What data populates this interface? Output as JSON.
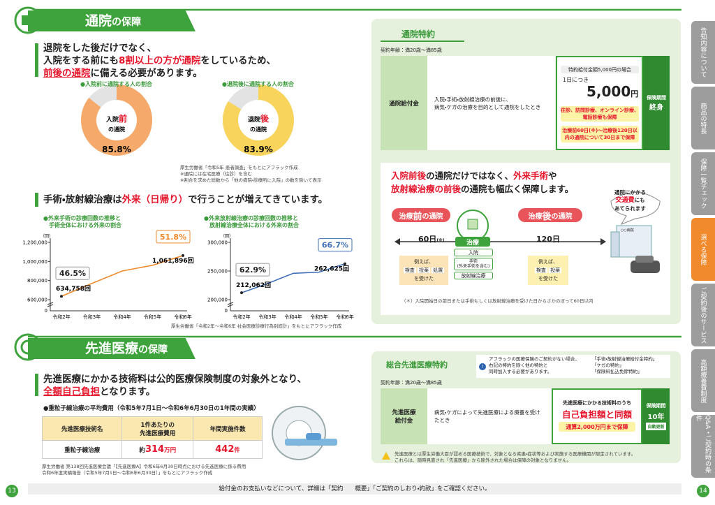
{
  "left_page": {
    "page_number": "13",
    "section1": {
      "title_main": "通院",
      "title_suffix": "の保障",
      "lead": [
        [
          "退院をした後だけでなく、"
        ],
        [
          "入院をする前にも",
          "8割以上の方が通院",
          "をしているため、"
        ],
        [
          "前後の通院",
          "に備える必要があります。"
        ]
      ],
      "donuts": [
        {
          "caption": "●入院前に通院する人の割合",
          "label_a": "入院",
          "label_b": "前",
          "label_c": "の通院",
          "value": 85.8,
          "value_label": "85.8%",
          "color": "#f5a96b",
          "rest_color": "#e3e3e3"
        },
        {
          "caption": "●退院後に通院する人の割合",
          "label_a": "退院",
          "label_b": "後",
          "label_c": "の通院",
          "value": 83.9,
          "value_label": "83.9%",
          "color": "#f9d45c",
          "rest_color": "#e3e3e3"
        }
      ],
      "donut_notes": [
        "厚生労働省「令和5年 患者調査」をもとにアフラック作成",
        "※通院には在宅医療（往診）を含む",
        "※割合を求めた総数から「他の病院・診療所に入院」の数を除いて表示"
      ],
      "subheading": [
        "手術・放射線治療は",
        "外来（日帰り）",
        "で行うことが増えてきています。"
      ],
      "line_charts": [
        {
          "type": "line",
          "title_lines": [
            "●外来手術の診療回数の推移と",
            "手術全体における外来の割合"
          ],
          "unit": "（回）",
          "categories": [
            "令和2年",
            "令和3年",
            "令和4年",
            "令和5年",
            "令和6年"
          ],
          "values": [
            634758,
            770000,
            900000,
            960000,
            1061896
          ],
          "value_labels": [
            "634,758回",
            null,
            null,
            null,
            "1,061,896回"
          ],
          "share_labels": [
            "46.5%",
            "51.8%"
          ],
          "color": "#f08a2c",
          "ylim": [
            600000,
            1200000
          ],
          "yticks": [
            {
              "value": 600000,
              "label": "600,000"
            },
            {
              "value": 800000,
              "label": "800,000"
            },
            {
              "value": 1000000,
              "label": "1,000,000"
            },
            {
              "value": 1200000,
              "label": "1,200,000"
            }
          ],
          "axis_zero": 0
        },
        {
          "type": "line",
          "title_lines": [
            "●外来放射線治療の診療回数の推移と",
            "放射線治療全体における外来の割合"
          ],
          "unit": "（回）",
          "categories": [
            "令和2年",
            "令和3年",
            "令和4年",
            "令和5年",
            "令和6年"
          ],
          "values": [
            212062,
            228000,
            246000,
            248000,
            262625
          ],
          "value_labels": [
            "212,062回",
            null,
            null,
            null,
            "262,625回"
          ],
          "share_labels": [
            "62.9%",
            "66.7%"
          ],
          "color": "#3f6fb6",
          "ylim": [
            200000,
            300000
          ],
          "yticks": [
            {
              "value": 200000,
              "label": "200,000"
            },
            {
              "value": 250000,
              "label": "250,000"
            },
            {
              "value": 300000,
              "label": "300,000"
            }
          ],
          "axis_zero": 0
        }
      ],
      "chart_note": "厚生労働省「令和2年～令和6年 社会医療診療行為別統計」をもとにアフラック作成"
    },
    "section2": {
      "title_main": "先進医療",
      "title_suffix": "の保障",
      "lead": [
        [
          "先進医療にかかる技術料は公的医療保険制度の対象外となり、"
        ],
        [
          "全額自己負担",
          "となります。"
        ]
      ],
      "table_title": "●重粒子線治療の平均費用（令和5年7月1日～令和6年6月30日の1年間の実績）",
      "table": {
        "header": [
          "先進医療技術名",
          "1件あたりの\n先進医療費用",
          "年間実施件数"
        ],
        "row": [
          "重粒子線治療",
          "約",
          "314",
          "万円",
          "442",
          "件"
        ]
      },
      "notes": [
        "厚生労働省 第138回先進医療会議「【先進医療A】令和6年6月30日時点における先進医療に係る費用",
        "令和6年度実績報告（令和5年7月1日～令和6年6月30日）」をもとにアフラック作成"
      ]
    }
  },
  "right_page": {
    "page_number": "14",
    "rider1": {
      "title": "通院特約",
      "age": "契約年齢：満20歳～満85歳",
      "benefit_name": "通院給付金",
      "condition": [
        "入院・手術・放射線治療の前後に、",
        "病気・ケガの治療を目的として通院をしたとき"
      ],
      "amount_case": "特約給付金額5,000円の場合",
      "per_day": "1日につき",
      "amount": "5,000",
      "amount_unit": "円",
      "coverage_1": "往診、訪問診療、オンライン診療、電話診療も保障",
      "coverage_2": "治療前60日(※)～治療後120日以内の通院について30日まで保障",
      "term_label": "保険期間",
      "term": "終身"
    },
    "feature": {
      "headline_1": [
        "入院前後",
        "の通院だけではなく、",
        "外来手術",
        "や"
      ],
      "headline_2": [
        "放射線治療の前後",
        "の通院も幅広く保障します。"
      ],
      "before_label": [
        "治療",
        "前",
        "の通院"
      ],
      "after_label": [
        "治療",
        "後",
        "の通院"
      ],
      "before_days": "60日",
      "before_mark": "(※)",
      "after_days": "120日",
      "treatment": "治療",
      "treatment_items": [
        "入院",
        "手術\n(外来手術を含む)",
        "放射線治療"
      ],
      "example_before": [
        "例えば、",
        "検査",
        "投薬",
        "処置",
        "を受けた"
      ],
      "example_after": [
        "例えば、",
        "検査",
        "投薬",
        "を受けた"
      ],
      "callout": [
        "通院にかかる",
        "交通費",
        "にも",
        "あてられます"
      ],
      "hospital_sign": "○○病院",
      "footnote": "（＊）入院開始日の前日または手術もしくは放射線治療を受けた日からさかのぼって60日以内"
    },
    "rider2": {
      "title": "総合先進医療特約",
      "info": [
        "アフラックの医療保険のご契約がない場合、",
        "右記の特約を除く他の特約と",
        "同時加入する必要があります。"
      ],
      "info_list": [
        "「手術・放射線治療給付金特約」",
        "「ケガの特約」",
        "「保険料払込免除特約」"
      ],
      "age": "契約年齢：満20歳～満85歳",
      "benefit_name": "先進医療\n給付金",
      "condition": "病気・ケガによって先進医療による療養を受けたとき",
      "coverage_pre": "先進医療にかかる技術料のうち",
      "coverage_main": "自己負担額と同額",
      "coverage_limit": "通算2,000万円まで保障",
      "term_label": "保険期間",
      "term": "10年",
      "renewal": "自動更新",
      "note": [
        "先進医療とは厚生労働大臣が認める医療技術で、対象となる疾患・症状等および実施する医療機関が限定されています。",
        "これらは、随時見直され「先進医療」から除外された場合は保障の対象となりません。"
      ]
    },
    "tabs": [
      "告知内容について",
      "商品の特長",
      "保障一覧チェック",
      "選べる保障",
      "ご契約後のサービス",
      "高額療養費制度",
      "Q&A・ご契約時の条件"
    ],
    "active_tab": 3
  },
  "footer": "給付金のお支払いなどについて、詳細は「契約　　概要」「ご契約のしおり・約款」をご確認ください。"
}
